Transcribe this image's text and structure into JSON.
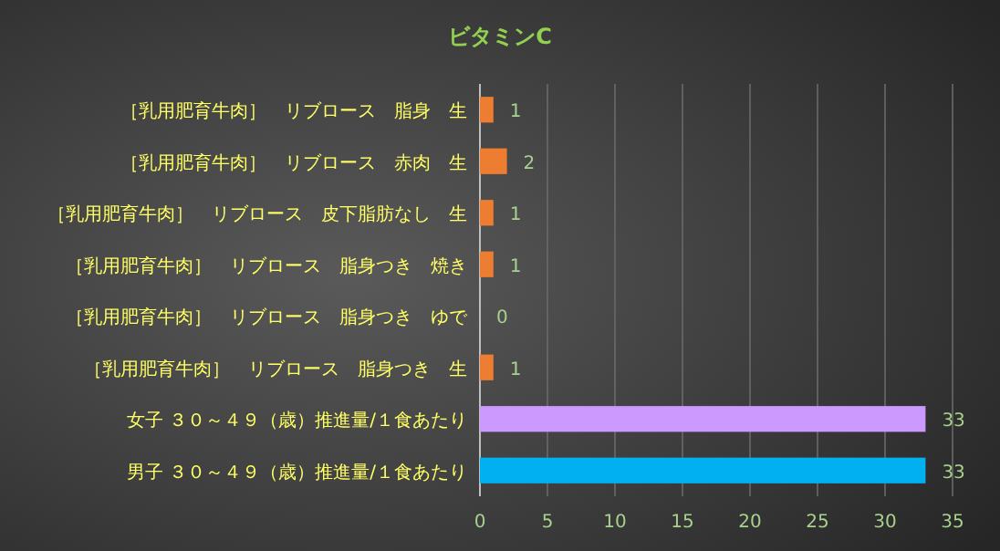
{
  "chart_data": {
    "type": "bar",
    "orientation": "horizontal",
    "title": "ビタミンC",
    "categories": [
      "［乳用肥育牛肉］　リブロース　脂身　生",
      "［乳用肥育牛肉］　リブロース　赤肉　生",
      "［乳用肥育牛肉］　リブロース　皮下脂肪なし　生",
      "［乳用肥育牛肉］　リブロース　脂身つき　焼き",
      "［乳用肥育牛肉］　リブロース　脂身つき　ゆで",
      "［乳用肥育牛肉］　リブロース　脂身つき　生",
      "女子 ３０～４９（歳）推進量/１食あたり",
      "男子 ３０～４９（歳）推進量/１食あたり"
    ],
    "values": [
      1,
      2,
      1,
      1,
      0,
      1,
      33,
      33
    ],
    "colors": [
      "#ed7d31",
      "#ed7d31",
      "#ed7d31",
      "#ed7d31",
      "#ed7d31",
      "#ed7d31",
      "#cc99ff",
      "#00b0f0"
    ],
    "data_labels": true,
    "grid": "x",
    "xlim": [
      0,
      35
    ],
    "xticks": [
      0,
      5,
      10,
      15,
      20,
      25,
      30,
      35
    ]
  }
}
